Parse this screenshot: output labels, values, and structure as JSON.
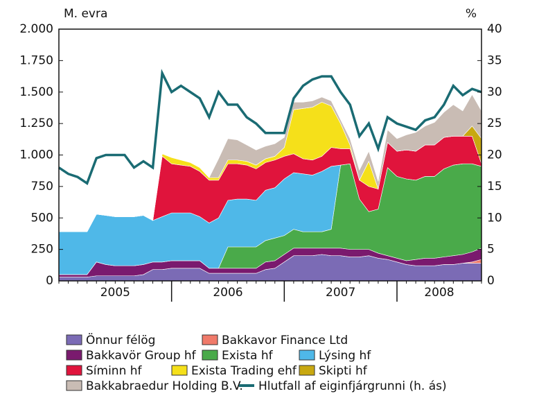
{
  "chart_data": {
    "type": "stacked_area_line",
    "ylabel": "M. evra",
    "y2label": "%",
    "categories": [
      null,
      null,
      null,
      null,
      null,
      null,
      null,
      null,
      null,
      null,
      null,
      null,
      null,
      null,
      null,
      null,
      null,
      null,
      null,
      null,
      null,
      null,
      null,
      null,
      null,
      null,
      null,
      null,
      null,
      null,
      null,
      null,
      null,
      null,
      null,
      null,
      null,
      null,
      null,
      null,
      null,
      null,
      null,
      null,
      null,
      null
    ],
    "year_labels": [
      "2005",
      "2006",
      "2007",
      "2008"
    ],
    "ylim": [
      0,
      2000
    ],
    "yticks": [
      {
        "value": 0,
        "label": "0"
      },
      {
        "value": 250,
        "label": "250"
      },
      {
        "value": 500,
        "label": "500"
      },
      {
        "value": 750,
        "label": "750"
      },
      {
        "value": 1000,
        "label": "1.000"
      },
      {
        "value": 1250,
        "label": "1.250"
      },
      {
        "value": 1500,
        "label": "1.500"
      },
      {
        "value": 1750,
        "label": "1.750"
      },
      {
        "value": 2000,
        "label": "2.000"
      }
    ],
    "y2lim": [
      0,
      40
    ],
    "y2ticks": [
      0,
      5,
      10,
      15,
      20,
      25,
      30,
      35,
      40
    ],
    "series": [
      {
        "name": "Önnur félög",
        "color": "#7b6bb5",
        "values": [
          30,
          30,
          30,
          30,
          40,
          40,
          40,
          40,
          40,
          50,
          90,
          90,
          100,
          100,
          100,
          100,
          60,
          60,
          60,
          60,
          60,
          60,
          90,
          100,
          150,
          200,
          200,
          200,
          210,
          200,
          200,
          190,
          190,
          200,
          180,
          170,
          150,
          130,
          120,
          120,
          120,
          130,
          130,
          140,
          140,
          140
        ]
      },
      {
        "name": "Bakkavor Finance Ltd",
        "color": "#f07a6a",
        "values": [
          0,
          0,
          0,
          0,
          0,
          0,
          0,
          0,
          0,
          0,
          0,
          0,
          0,
          0,
          0,
          0,
          0,
          0,
          0,
          0,
          0,
          0,
          0,
          0,
          0,
          0,
          0,
          0,
          0,
          0,
          0,
          0,
          0,
          0,
          0,
          0,
          0,
          0,
          0,
          0,
          0,
          0,
          0,
          0,
          10,
          30
        ]
      },
      {
        "name": "Bakkavör Group hf",
        "color": "#7a1a6e",
        "values": [
          20,
          20,
          20,
          20,
          110,
          90,
          80,
          80,
          80,
          80,
          60,
          60,
          60,
          60,
          60,
          60,
          40,
          40,
          40,
          40,
          40,
          40,
          60,
          60,
          60,
          60,
          60,
          60,
          50,
          60,
          60,
          60,
          60,
          50,
          40,
          30,
          30,
          30,
          50,
          60,
          60,
          60,
          70,
          70,
          80,
          90
        ]
      },
      {
        "name": "Exista hf",
        "color": "#4aaa4a",
        "values": [
          0,
          0,
          0,
          0,
          0,
          0,
          0,
          0,
          0,
          0,
          0,
          0,
          0,
          0,
          0,
          0,
          0,
          0,
          170,
          170,
          170,
          170,
          170,
          180,
          150,
          150,
          130,
          130,
          130,
          150,
          660,
          680,
          400,
          300,
          350,
          700,
          650,
          650,
          630,
          650,
          650,
          700,
          720,
          720,
          700,
          650
        ]
      },
      {
        "name": "Lýsing hf",
        "color": "#4fb8e8",
        "values": [
          340,
          340,
          340,
          340,
          380,
          390,
          390,
          390,
          390,
          390,
          330,
          360,
          380,
          380,
          380,
          350,
          360,
          400,
          370,
          380,
          380,
          370,
          400,
          400,
          450,
          450,
          460,
          450,
          480,
          500,
          0,
          0,
          0,
          0,
          0,
          0,
          0,
          0,
          0,
          0,
          0,
          0,
          0,
          0,
          0,
          0
        ]
      },
      {
        "name": "Síminn hf",
        "color": "#e0143c",
        "values": [
          0,
          0,
          0,
          0,
          0,
          0,
          0,
          0,
          0,
          0,
          0,
          480,
          390,
          380,
          370,
          360,
          340,
          300,
          290,
          280,
          270,
          250,
          220,
          220,
          180,
          150,
          120,
          120,
          120,
          150,
          130,
          120,
          150,
          200,
          160,
          200,
          200,
          230,
          230,
          250,
          250,
          250,
          230,
          220,
          220,
          20
        ]
      },
      {
        "name": "Exista Trading ehf",
        "color": "#f5e01a",
        "values": [
          0,
          0,
          0,
          0,
          0,
          0,
          0,
          0,
          0,
          0,
          0,
          20,
          50,
          40,
          30,
          30,
          20,
          20,
          30,
          30,
          30,
          30,
          30,
          30,
          70,
          350,
          400,
          420,
          430,
          330,
          200,
          30,
          0,
          200,
          0,
          0,
          0,
          0,
          0,
          0,
          0,
          0,
          0,
          0,
          0,
          0
        ]
      },
      {
        "name": "Skipti hf",
        "color": "#c8a810",
        "values": [
          0,
          0,
          0,
          0,
          0,
          0,
          0,
          0,
          0,
          0,
          0,
          0,
          0,
          0,
          0,
          0,
          0,
          0,
          0,
          0,
          0,
          0,
          0,
          0,
          0,
          0,
          0,
          0,
          0,
          0,
          0,
          0,
          0,
          0,
          0,
          0,
          0,
          0,
          0,
          0,
          0,
          0,
          0,
          0,
          80,
          200
        ]
      },
      {
        "name": "Bakkabraedur Holding B.V.",
        "color": "#c9bcb4",
        "values": [
          0,
          0,
          0,
          0,
          0,
          0,
          0,
          0,
          0,
          0,
          0,
          0,
          0,
          0,
          0,
          0,
          0,
          150,
          170,
          160,
          130,
          120,
          100,
          100,
          80,
          60,
          50,
          50,
          40,
          40,
          30,
          50,
          80,
          80,
          60,
          100,
          100,
          120,
          150,
          150,
          180,
          200,
          250,
          200,
          250,
          220
        ]
      },
      {
        "name": "Hlutfall af eiginfjárgrunni (h. ás)",
        "color": "#1a6b73",
        "axis": "y2",
        "values": [
          18,
          17,
          16.5,
          15.5,
          19.5,
          20,
          20,
          20,
          18,
          19,
          18,
          33,
          30,
          31,
          30,
          29,
          26,
          30,
          28,
          28,
          26,
          25,
          23.5,
          23.5,
          23.5,
          29,
          31,
          32,
          32.5,
          32.5,
          30,
          28,
          23,
          25,
          21,
          26,
          25,
          24.5,
          24,
          25.5,
          26,
          28,
          31,
          29.5,
          30.5,
          30
        ]
      }
    ]
  }
}
